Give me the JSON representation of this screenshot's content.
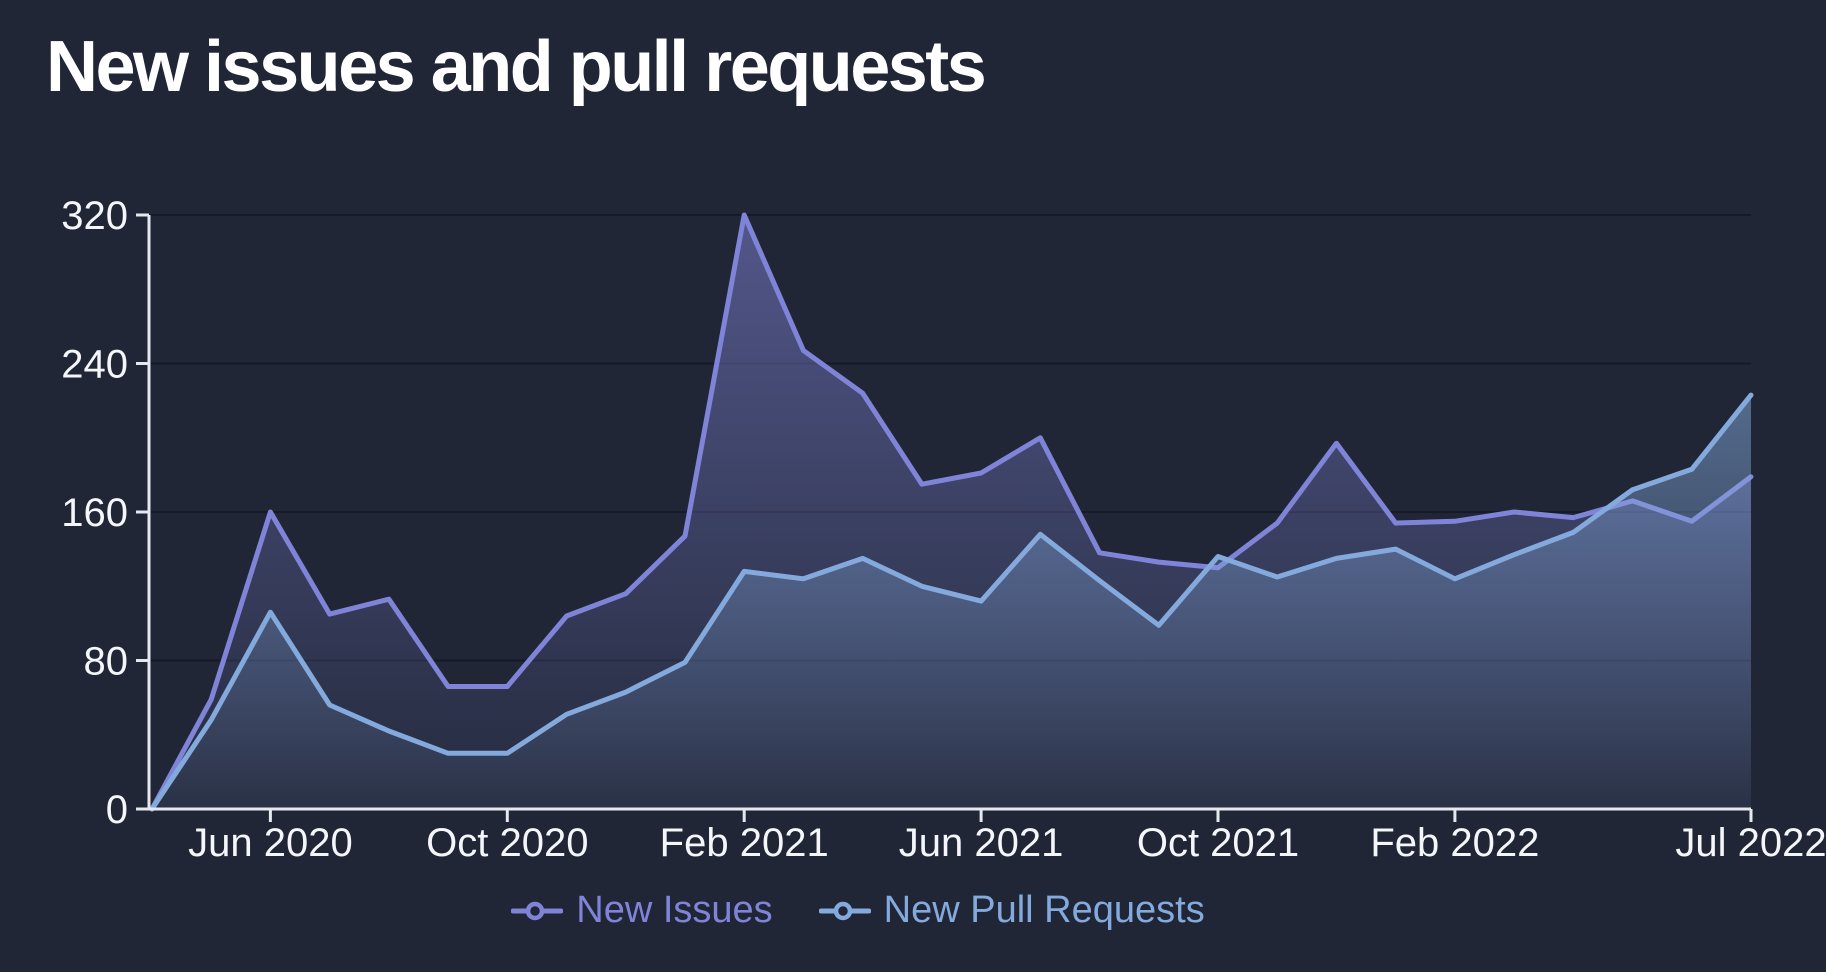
{
  "title": "New issues and pull requests",
  "colors": {
    "background": "#202635",
    "title": "#ffffff",
    "axis": "#e5e8ee",
    "tick_label": "#f4f6fa",
    "grid": "rgba(8,14,26,0.45)",
    "issues": "#8084d8",
    "pull_requests": "#84aadd"
  },
  "chart_data": {
    "type": "area",
    "title": "New issues and pull requests",
    "x": [
      "Apr 2020",
      "May 2020",
      "Jun 2020",
      "Jul 2020",
      "Aug 2020",
      "Sep 2020",
      "Oct 2020",
      "Nov 2020",
      "Dec 2020",
      "Jan 2021",
      "Feb 2021",
      "Mar 2021",
      "Apr 2021",
      "May 2021",
      "Jun 2021",
      "Jul 2021",
      "Aug 2021",
      "Sep 2021",
      "Oct 2021",
      "Nov 2021",
      "Dec 2021",
      "Jan 2022",
      "Feb 2022",
      "Mar 2022",
      "Apr 2022",
      "May 2022",
      "Jun 2022",
      "Jul 2022"
    ],
    "series": [
      {
        "name": "New Issues",
        "color": "#8084d8",
        "values": [
          0,
          59,
          160,
          105,
          113,
          66,
          66,
          104,
          116,
          147,
          320,
          247,
          224,
          175,
          181,
          200,
          138,
          133,
          130,
          154,
          197,
          154,
          155,
          160,
          157,
          166,
          155,
          179
        ]
      },
      {
        "name": "New Pull Requests",
        "color": "#84aadd",
        "values": [
          0,
          48,
          106,
          56,
          42,
          30,
          30,
          51,
          63,
          79,
          128,
          124,
          135,
          120,
          112,
          148,
          123,
          99,
          136,
          125,
          135,
          140,
          124,
          137,
          149,
          172,
          183,
          223
        ]
      }
    ],
    "xtick_indices": [
      2,
      6,
      10,
      14,
      18,
      22,
      27
    ],
    "xtick_labels": [
      "Jun 2020",
      "Oct 2020",
      "Feb 2021",
      "Jun 2021",
      "Oct 2021",
      "Feb 2022",
      "Jul 2022"
    ],
    "yticks": [
      0,
      80,
      160,
      240,
      320
    ],
    "ylim": [
      0,
      320
    ],
    "xlabel": "",
    "ylabel": "",
    "grid": "horizontal-only",
    "legend_position": "bottom-center"
  }
}
